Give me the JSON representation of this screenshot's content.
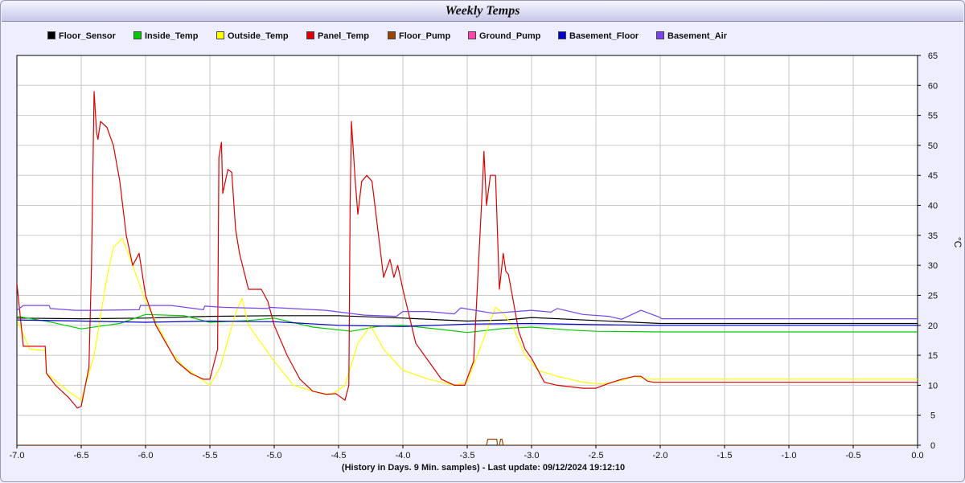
{
  "window": {
    "title": "Weekly Temps"
  },
  "footer": {
    "text": "(History in Days. 9 Min. samples) - Last update: 09/12/2024 19:12:10"
  },
  "colors": {
    "background": "#eeeeff",
    "plot_background": "#ffffff",
    "grid": "#c8c8c8",
    "axis": "#000000"
  },
  "chart_data": {
    "type": "line",
    "title": "Weekly Temps",
    "xlabel": "(History in Days. 9 Min. samples) - Last update: 09/12/2024 19:12:10",
    "ylabel": "°C",
    "xlim": [
      -7.0,
      0.0
    ],
    "ylim": [
      0,
      65
    ],
    "x_ticks": [
      "-7.0",
      "-6.5",
      "-6.0",
      "-5.5",
      "-5.0",
      "-4.5",
      "-4.0",
      "-3.5",
      "-3.0",
      "-2.5",
      "-2.0",
      "-1.5",
      "-1.0",
      "-0.5",
      "0.0"
    ],
    "y_ticks": [
      "0",
      "5",
      "10",
      "15",
      "20",
      "25",
      "30",
      "35",
      "40",
      "45",
      "50",
      "55",
      "60",
      "65"
    ],
    "y_axis_side": "right",
    "grid": true,
    "legend_position": "top",
    "series": [
      {
        "name": "Floor_Sensor",
        "color": "#000000",
        "x": [
          -7.0,
          -6.5,
          -6.0,
          -5.5,
          -5.0,
          -4.5,
          -4.0,
          -3.5,
          -3.2,
          -3.0,
          -2.5,
          -2.0,
          0.0
        ],
        "y": [
          21.2,
          21.1,
          21.2,
          21.5,
          21.6,
          21.6,
          21.2,
          20.7,
          20.9,
          21.3,
          20.8,
          20.3,
          20.3
        ]
      },
      {
        "name": "Inside_Temp",
        "color": "#00cc00",
        "x": [
          -7.0,
          -6.75,
          -6.5,
          -6.2,
          -6.0,
          -5.7,
          -5.5,
          -5.2,
          -5.0,
          -4.7,
          -4.4,
          -4.2,
          -4.0,
          -3.7,
          -3.5,
          -3.2,
          -3.0,
          -2.7,
          -2.5,
          -2.0,
          0.0
        ],
        "y": [
          21.5,
          20.6,
          19.4,
          20.3,
          21.8,
          21.6,
          20.5,
          20.8,
          21.2,
          19.7,
          19.0,
          19.8,
          20.0,
          19.3,
          18.8,
          19.5,
          19.7,
          19.2,
          19.0,
          18.9,
          18.9
        ]
      },
      {
        "name": "Outside_Temp",
        "color": "#ffff00",
        "x": [
          -7.0,
          -6.9,
          -6.78,
          -6.77,
          -6.6,
          -6.5,
          -6.4,
          -6.3,
          -6.25,
          -6.18,
          -6.1,
          -6.0,
          -5.8,
          -5.7,
          -5.6,
          -5.5,
          -5.42,
          -5.3,
          -5.25,
          -5.2,
          -5.1,
          -5.0,
          -4.85,
          -4.65,
          -4.55,
          -4.45,
          -4.35,
          -4.25,
          -4.15,
          -4.0,
          -3.8,
          -3.6,
          -3.5,
          -3.35,
          -3.28,
          -3.22,
          -3.15,
          -3.05,
          -2.95,
          -2.8,
          -2.6,
          -2.45,
          -2.3,
          -2.2,
          -2.1,
          -2.0,
          0.0
        ],
        "y": [
          21,
          16,
          15.8,
          12,
          9,
          7.5,
          15,
          28,
          33,
          34.5,
          30,
          24,
          15.5,
          13,
          11.5,
          10,
          13,
          22,
          24.5,
          20,
          17,
          14,
          10,
          8.7,
          8.5,
          10,
          17,
          20,
          16,
          12.5,
          11,
          10,
          10.5,
          19,
          23,
          22,
          20,
          15,
          12.5,
          11.5,
          10.5,
          10.2,
          10.8,
          11.5,
          11,
          11,
          11
        ]
      },
      {
        "name": "Panel_Temp",
        "color": "#dd0000",
        "x": [
          -7.0,
          -6.95,
          -6.9,
          -6.78,
          -6.77,
          -6.7,
          -6.6,
          -6.53,
          -6.5,
          -6.44,
          -6.42,
          -6.4,
          -6.38,
          -6.37,
          -6.35,
          -6.3,
          -6.25,
          -6.2,
          -6.15,
          -6.1,
          -6.05,
          -6.0,
          -5.92,
          -5.84,
          -5.76,
          -5.65,
          -5.55,
          -5.5,
          -5.44,
          -5.43,
          -5.41,
          -5.4,
          -5.36,
          -5.33,
          -5.3,
          -5.27,
          -5.2,
          -5.1,
          -5.05,
          -5.0,
          -4.9,
          -4.8,
          -4.7,
          -4.6,
          -4.52,
          -4.45,
          -4.42,
          -4.41,
          -4.4,
          -4.37,
          -4.35,
          -4.32,
          -4.28,
          -4.24,
          -4.15,
          -4.1,
          -4.07,
          -4.04,
          -4.0,
          -3.9,
          -3.8,
          -3.7,
          -3.6,
          -3.52,
          -3.45,
          -3.38,
          -3.37,
          -3.35,
          -3.32,
          -3.28,
          -3.25,
          -3.22,
          -3.2,
          -3.18,
          -3.15,
          -3.1,
          -3.05,
          -3.0,
          -2.9,
          -2.8,
          -2.6,
          -2.5,
          -2.4,
          -2.3,
          -2.2,
          -2.15,
          -2.1,
          -2.05,
          -2.0,
          0.0
        ],
        "y": [
          27,
          16.5,
          16.5,
          16.5,
          12,
          10,
          8,
          6.2,
          6.5,
          13,
          30,
          59,
          52,
          51,
          54,
          53,
          50,
          44,
          35,
          30,
          32,
          25,
          20,
          17,
          14,
          12,
          11,
          11,
          16,
          48,
          50.5,
          42,
          46,
          45.5,
          36,
          32,
          26,
          26,
          24,
          20,
          15,
          11,
          9,
          8.5,
          8.6,
          7.5,
          10,
          40,
          54,
          44,
          38.5,
          44,
          45,
          44,
          28,
          31,
          28,
          30,
          26,
          17,
          14,
          11,
          10,
          10,
          14,
          44,
          49,
          40,
          45,
          45,
          26,
          32,
          29,
          28.5,
          25,
          19,
          16,
          14.5,
          10.5,
          10,
          9.5,
          9.5,
          10.3,
          11,
          11.5,
          11.5,
          10.7,
          10.5,
          10.5,
          10.5
        ]
      },
      {
        "name": "Floor_Pump",
        "color": "#994400",
        "x": [
          -7.0,
          -3.35,
          -3.34,
          -3.27,
          -3.265,
          -3.25,
          -3.24,
          -3.23,
          -3.22,
          0.0
        ],
        "y": [
          0,
          0,
          1,
          1,
          0,
          0,
          1,
          1,
          0,
          0
        ]
      },
      {
        "name": "Ground_Pump",
        "color": "#ff44aa",
        "x": [],
        "y": []
      },
      {
        "name": "Basement_Floor",
        "color": "#0000cc",
        "x": [
          -7.0,
          -6.5,
          -6.0,
          -5.5,
          -5.0,
          -4.5,
          -4.0,
          -3.5,
          -3.0,
          -2.5,
          -2.0,
          0.0
        ],
        "y": [
          20.9,
          20.7,
          20.5,
          20.7,
          20.6,
          20.0,
          19.8,
          20.2,
          20.3,
          20.1,
          20.0,
          20.0
        ]
      },
      {
        "name": "Basement_Air",
        "color": "#7744ee",
        "x": [
          -7.0,
          -6.95,
          -6.75,
          -6.74,
          -6.55,
          -6.4,
          -6.05,
          -6.04,
          -5.8,
          -5.55,
          -5.54,
          -5.4,
          -5.05,
          -5.04,
          -4.6,
          -4.3,
          -4.05,
          -4.0,
          -3.8,
          -3.6,
          -3.55,
          -3.3,
          -3.0,
          -2.85,
          -2.8,
          -2.6,
          -2.4,
          -2.3,
          -2.2,
          -2.15,
          -2.0,
          -1.99,
          0.0
        ],
        "y": [
          22.5,
          23.3,
          23.3,
          22.8,
          22.5,
          22.5,
          22.6,
          23.3,
          23.3,
          22.6,
          23.2,
          23.0,
          22.8,
          23.0,
          22.5,
          21.7,
          21.5,
          22.3,
          22.3,
          21.9,
          22.9,
          22.0,
          22.5,
          22.2,
          22.8,
          21.8,
          21.5,
          21.0,
          22.0,
          22.5,
          21.3,
          21.1,
          21.1
        ]
      }
    ]
  }
}
